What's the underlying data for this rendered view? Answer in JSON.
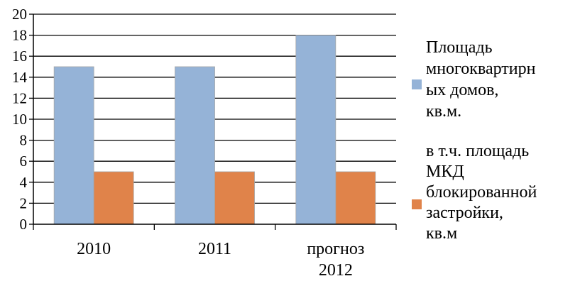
{
  "chart_data": {
    "type": "bar",
    "categories": [
      "2010",
      "2011",
      "прогноз\n2012"
    ],
    "series": [
      {
        "name": "Площадь многоквартирных домов, кв.м.",
        "legend_text": "Площадь\nмногоквартирн\nых домов,\nкв.м.",
        "values": [
          15,
          15,
          18
        ],
        "color": "#95B3D7"
      },
      {
        "name": "в т.ч. площадь МКД блокированной застройки, кв.м",
        "legend_text": "в т.ч. площадь\nМКД\nблокированной\nзастройки,\nкв.м",
        "values": [
          5,
          5,
          5
        ],
        "color": "#E0834A"
      }
    ],
    "yticks": [
      "0",
      "2",
      "4",
      "6",
      "8",
      "10",
      "12",
      "14",
      "16",
      "18",
      "20"
    ],
    "ylim": [
      0,
      20
    ],
    "grid": true,
    "legend_position": "right",
    "title": "",
    "xlabel": "",
    "ylabel": ""
  }
}
